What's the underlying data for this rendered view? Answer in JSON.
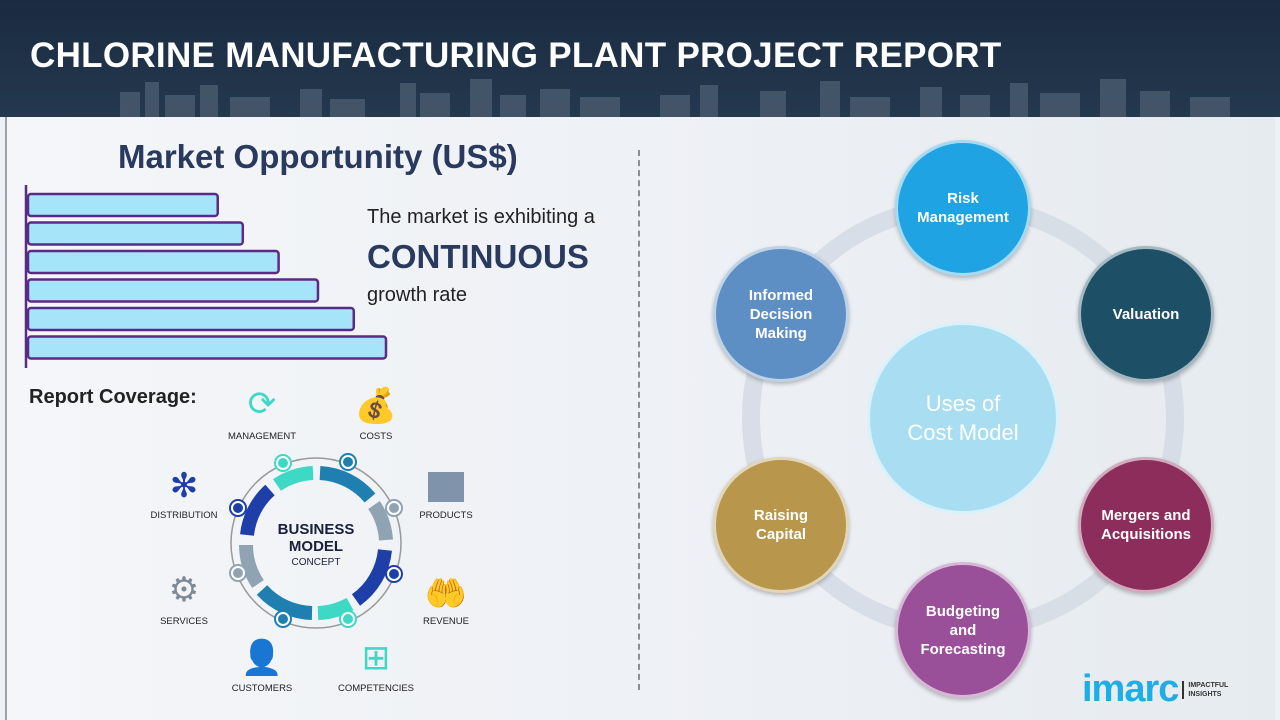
{
  "header": {
    "title": "CHLORINE MANUFACTURING PLANT PROJECT REPORT"
  },
  "market": {
    "title": "Market Opportunity (US$)",
    "line1": "The market is exhibiting a",
    "highlight": "CONTINUOUS",
    "line2": "growth rate",
    "chart_data": {
      "type": "bar",
      "orientation": "horizontal",
      "values_relative": [
        0.53,
        0.6,
        0.7,
        0.81,
        0.91,
        1.0
      ],
      "bar_fill": "#a6e4fa",
      "bar_stroke": "#5b2a86"
    }
  },
  "coverage": {
    "title": "Report Coverage:",
    "center_title": "BUSINESS\nMODEL",
    "center_sub": "CONCEPT",
    "items": [
      {
        "label": "MANAGEMENT",
        "icon": "lightbulb-cycle-icon"
      },
      {
        "label": "COSTS",
        "icon": "money-bag-icon"
      },
      {
        "label": "PRODUCTS",
        "icon": "box-icon"
      },
      {
        "label": "REVENUE",
        "icon": "hand-coins-icon"
      },
      {
        "label": "COMPETENCIES",
        "icon": "org-chart-icon"
      },
      {
        "label": "CUSTOMERS",
        "icon": "person-icon"
      },
      {
        "label": "SERVICES",
        "icon": "gears-icon"
      },
      {
        "label": "DISTRIBUTION",
        "icon": "network-icon"
      }
    ]
  },
  "uses": {
    "center": "Uses of\nCost Model",
    "items": [
      {
        "label": "Risk\nManagement",
        "color": "#1fa3e2"
      },
      {
        "label": "Valuation",
        "color": "#1d4f66"
      },
      {
        "label": "Mergers and\nAcquisitions",
        "color": "#8c2d5b"
      },
      {
        "label": "Budgeting\nand\nForecasting",
        "color": "#9a4f99"
      },
      {
        "label": "Raising\nCapital",
        "color": "#b8964b"
      },
      {
        "label": "Informed\nDecision\nMaking",
        "color": "#5e8fc4"
      }
    ]
  },
  "logo": {
    "word": "imarc",
    "tagline": "IMPACTFUL INSIGHTS"
  }
}
